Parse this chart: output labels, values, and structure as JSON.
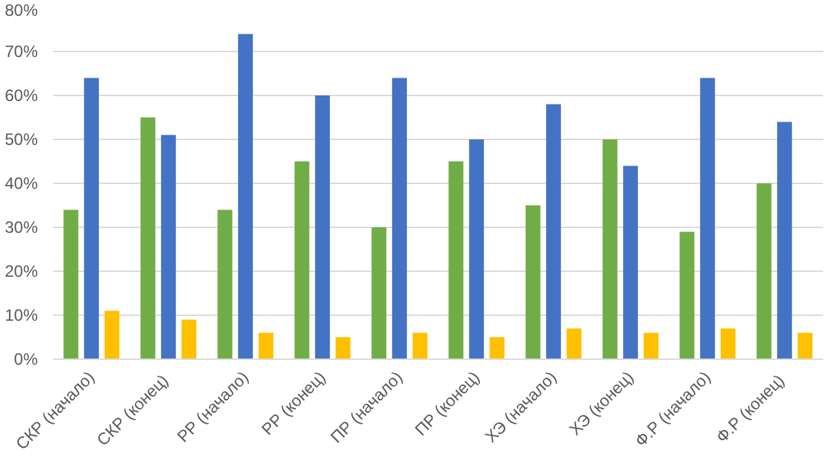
{
  "chart_data": {
    "type": "bar",
    "categories": [
      "СКР (начало)",
      "СКР  (конец)",
      "РР (начало)",
      "РР (конец)",
      "ПР (начало)",
      "ПР (конец)",
      "ХЭ (начало)",
      "ХЭ (конец)",
      "Ф.Р (начало)",
      "Ф.Р  (конец)"
    ],
    "series": [
      {
        "color": "#70ad47",
        "values": [
          34,
          55,
          34,
          45,
          30,
          45,
          35,
          50,
          29,
          40
        ]
      },
      {
        "color": "#4472c4",
        "values": [
          64,
          51,
          74,
          60,
          64,
          50,
          58,
          44,
          64,
          54
        ]
      },
      {
        "color": "#ffc000",
        "values": [
          11,
          9,
          6,
          5,
          6,
          5,
          7,
          6,
          7,
          6
        ]
      }
    ],
    "ylim": [
      0,
      80
    ],
    "yticks": [
      {
        "value": 0,
        "label": "0%"
      },
      {
        "value": 10,
        "label": "10%"
      },
      {
        "value": 20,
        "label": "20%"
      },
      {
        "value": 30,
        "label": "30%"
      },
      {
        "value": 40,
        "label": "40%"
      },
      {
        "value": 50,
        "label": "50%"
      },
      {
        "value": 60,
        "label": "60%"
      },
      {
        "value": 70,
        "label": "70%"
      },
      {
        "value": 80,
        "label": "80%"
      }
    ],
    "grid": "y"
  }
}
